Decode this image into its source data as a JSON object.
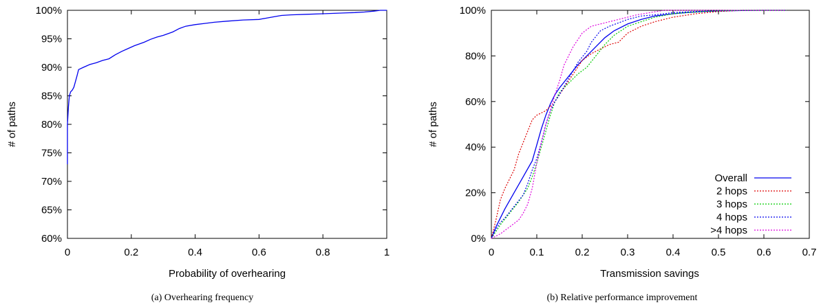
{
  "chart_data": [
    {
      "type": "line",
      "caption": "(a)  Overhearing frequency",
      "xlabel": "Probability of overhearing",
      "ylabel": "# of paths",
      "xlim": [
        0,
        1
      ],
      "ylim": [
        60,
        100
      ],
      "x_ticks": [
        0,
        0.2,
        0.4,
        0.6,
        0.8,
        1
      ],
      "x_tick_labels": [
        "0",
        "0.2",
        "0.4",
        "0.6",
        "0.8",
        "1"
      ],
      "y_ticks": [
        60,
        65,
        70,
        75,
        80,
        85,
        90,
        95,
        100
      ],
      "y_tick_labels": [
        "60%",
        "65%",
        "70%",
        "75%",
        "80%",
        "85%",
        "90%",
        "95%",
        "100%"
      ],
      "grid": false,
      "series": [
        {
          "color": "#0000ee",
          "dash": "solid",
          "x": [
            0,
            0,
            0.003,
            0.006,
            0.01,
            0.015,
            0.02,
            0.025,
            0.03,
            0.035,
            0.05,
            0.07,
            0.09,
            0.11,
            0.13,
            0.15,
            0.17,
            0.19,
            0.21,
            0.24,
            0.26,
            0.28,
            0.3,
            0.33,
            0.35,
            0.37,
            0.4,
            0.43,
            0.46,
            0.5,
            0.55,
            0.6,
            0.62,
            0.65,
            0.67,
            0.7,
            0.75,
            0.8,
            0.85,
            0.9,
            0.93,
            0.96,
            0.98,
            1
          ],
          "y": [
            73,
            80,
            83,
            85,
            85.7,
            86,
            86.5,
            87.5,
            88.5,
            89.6,
            90,
            90.5,
            90.8,
            91.2,
            91.5,
            92.2,
            92.8,
            93.3,
            93.8,
            94.4,
            94.9,
            95.3,
            95.6,
            96.2,
            96.8,
            97.2,
            97.5,
            97.7,
            97.9,
            98.1,
            98.3,
            98.4,
            98.6,
            98.9,
            99.1,
            99.2,
            99.3,
            99.4,
            99.5,
            99.6,
            99.7,
            99.85,
            100,
            100
          ]
        }
      ]
    },
    {
      "type": "line",
      "caption": "(b)  Relative performance improvement",
      "xlabel": "Transmission savings",
      "ylabel": "# of paths",
      "xlim": [
        0,
        0.7
      ],
      "ylim": [
        0,
        100
      ],
      "x_ticks": [
        0,
        0.1,
        0.2,
        0.3,
        0.4,
        0.5,
        0.6,
        0.7
      ],
      "x_tick_labels": [
        "0",
        "0.1",
        "0.2",
        "0.3",
        "0.4",
        "0.5",
        "0.6",
        "0.7"
      ],
      "y_ticks": [
        0,
        20,
        40,
        60,
        80,
        100
      ],
      "y_tick_labels": [
        "0%",
        "20%",
        "40%",
        "60%",
        "80%",
        "100%"
      ],
      "grid": false,
      "legend": "bottom-right",
      "series": [
        {
          "name": "Overall",
          "color": "#0000ee",
          "dash": "solid",
          "x": [
            0,
            0.01,
            0.02,
            0.03,
            0.05,
            0.07,
            0.09,
            0.1,
            0.11,
            0.12,
            0.13,
            0.14,
            0.15,
            0.17,
            0.19,
            0.21,
            0.23,
            0.25,
            0.27,
            0.3,
            0.33,
            0.36,
            0.4,
            0.43,
            0.47,
            0.5,
            0.55,
            0.6,
            0.65
          ],
          "y": [
            0,
            5,
            9,
            13,
            20,
            27,
            34,
            41,
            48,
            54,
            59,
            63,
            66,
            71,
            76,
            80,
            84,
            88,
            91,
            94,
            96,
            97.5,
            98.5,
            99,
            99.5,
            99.7,
            99.9,
            100,
            100
          ]
        },
        {
          "name": "2 hops",
          "color": "#dd0000",
          "dash": "dotted",
          "x": [
            0,
            0.01,
            0.02,
            0.03,
            0.05,
            0.06,
            0.07,
            0.08,
            0.09,
            0.1,
            0.11,
            0.12,
            0.13,
            0.14,
            0.16,
            0.18,
            0.2,
            0.22,
            0.24,
            0.26,
            0.28,
            0.3,
            0.33,
            0.36,
            0.4,
            0.45,
            0.5,
            0.55,
            0.6,
            0.65
          ],
          "y": [
            0,
            8,
            17,
            22,
            30,
            37,
            42,
            47,
            52,
            54,
            55,
            56,
            58,
            60,
            66,
            72,
            78,
            81,
            83,
            85,
            86,
            90,
            93,
            95,
            97,
            98.5,
            99.5,
            100,
            100,
            100
          ]
        },
        {
          "name": "3 hops",
          "color": "#00cc00",
          "dash": "dotted",
          "x": [
            0,
            0.01,
            0.02,
            0.04,
            0.06,
            0.08,
            0.09,
            0.1,
            0.11,
            0.12,
            0.13,
            0.14,
            0.15,
            0.17,
            0.19,
            0.21,
            0.23,
            0.25,
            0.27,
            0.3,
            0.33,
            0.36,
            0.4,
            0.43,
            0.47,
            0.5,
            0.55,
            0.6,
            0.65
          ],
          "y": [
            0,
            3,
            6,
            11,
            16,
            22,
            27,
            33,
            40,
            47,
            54,
            60,
            64,
            68,
            72,
            75,
            80,
            85,
            89,
            93,
            95,
            97,
            98.5,
            99,
            99.5,
            99.8,
            100,
            100,
            100
          ]
        },
        {
          "name": "4 hops",
          "color": "#0000ee",
          "dash": "dotted",
          "x": [
            0,
            0.01,
            0.02,
            0.03,
            0.05,
            0.07,
            0.08,
            0.09,
            0.1,
            0.11,
            0.12,
            0.13,
            0.14,
            0.15,
            0.17,
            0.19,
            0.21,
            0.22,
            0.24,
            0.26,
            0.28,
            0.3,
            0.33,
            0.36,
            0.4,
            0.45,
            0.5,
            0.55,
            0.6,
            0.65
          ],
          "y": [
            0,
            4,
            7,
            9,
            14,
            19,
            24,
            30,
            35,
            42,
            50,
            56,
            60,
            63,
            70,
            77,
            82,
            86,
            91,
            93,
            94.5,
            96,
            97.5,
            98,
            99,
            99.5,
            99.8,
            100,
            100,
            100
          ]
        },
        {
          "name": ">4 hops",
          "color": "#dd00dd",
          "dash": "dotted",
          "x": [
            0,
            0.02,
            0.04,
            0.06,
            0.07,
            0.08,
            0.09,
            0.1,
            0.11,
            0.12,
            0.13,
            0.14,
            0.15,
            0.16,
            0.18,
            0.2,
            0.22,
            0.24,
            0.26,
            0.28,
            0.3,
            0.32,
            0.35,
            0.38,
            0.42,
            0.46,
            0.5,
            0.55,
            0.6,
            0.65
          ],
          "y": [
            0,
            2,
            5,
            8,
            11,
            15,
            22,
            33,
            42,
            50,
            56,
            63,
            69,
            76,
            84,
            90,
            93,
            94,
            95,
            96,
            97,
            98,
            99,
            100,
            100,
            100,
            100,
            100,
            100,
            100
          ]
        }
      ]
    }
  ]
}
